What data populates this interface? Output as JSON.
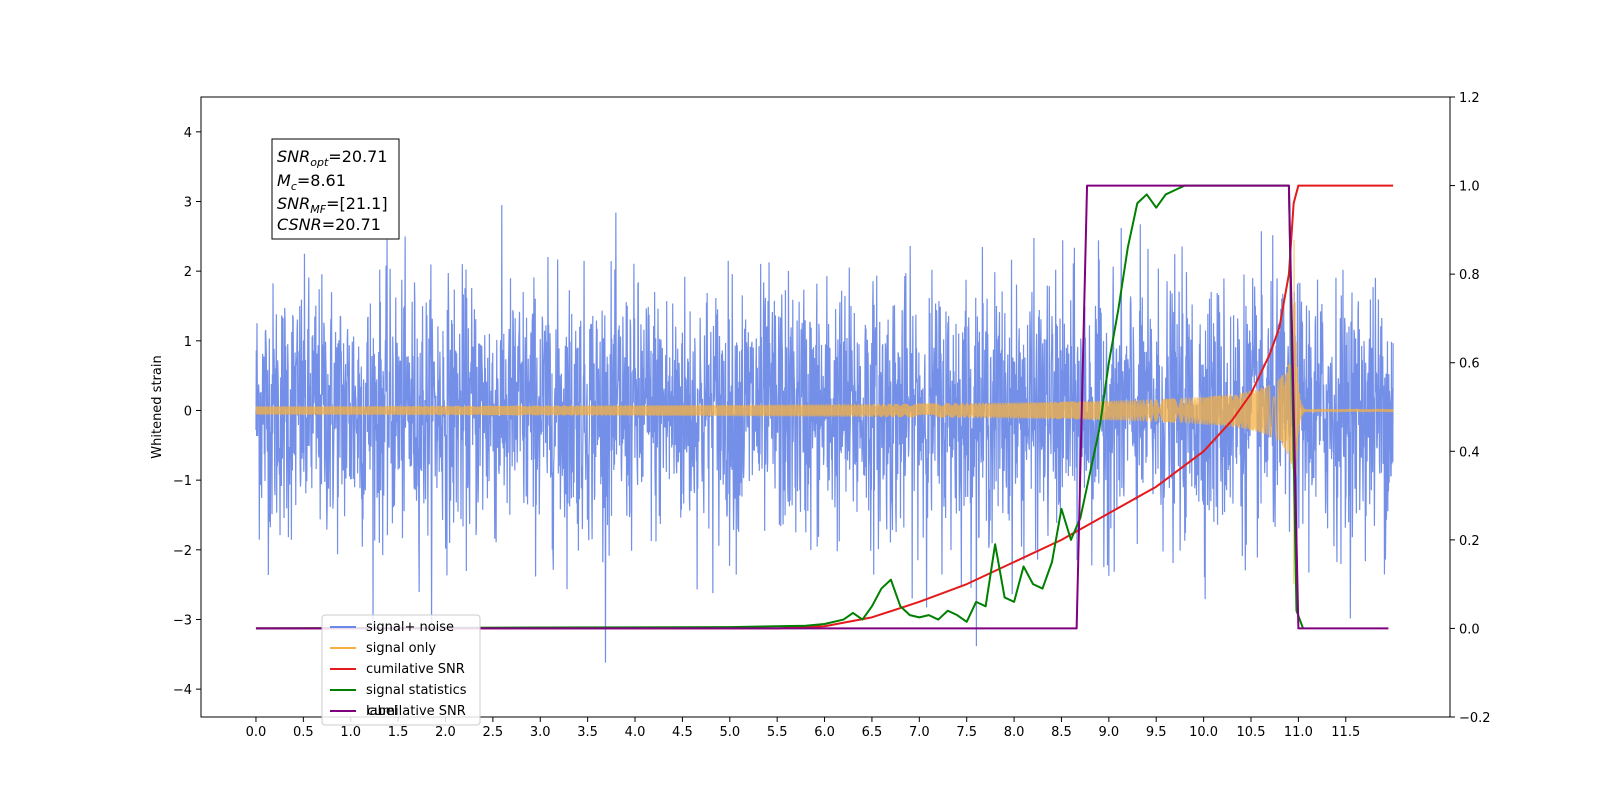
{
  "chart_data": {
    "type": "line",
    "ylabel_left": "Whitened strain",
    "ylabel_right": "",
    "xlim": [
      -0.58,
      12.6
    ],
    "ylim_left": [
      -4.4,
      4.5
    ],
    "ylim_right": [
      -0.2,
      1.2
    ],
    "x_ticks": [
      0.0,
      0.5,
      1.0,
      1.5,
      2.0,
      2.5,
      3.0,
      3.5,
      4.0,
      4.5,
      5.0,
      5.5,
      6.0,
      6.5,
      7.0,
      7.5,
      8.0,
      8.5,
      9.0,
      9.5,
      10.0,
      10.5,
      11.0,
      11.5
    ],
    "x_tick_labels": [
      "0.0",
      "0.5",
      "1.0",
      "1.5",
      "2.0",
      "2.5",
      "3.0",
      "3.5",
      "4.0",
      "4.5",
      "5.0",
      "5.5",
      "6.0",
      "6.5",
      "7.0",
      "7.5",
      "8.0",
      "8.5",
      "9.0",
      "9.5",
      "10.0",
      "10.5",
      "11.0",
      "11.5"
    ],
    "y_left_ticks": [
      -4,
      -3,
      -2,
      -1,
      0,
      1,
      2,
      3,
      4
    ],
    "y_left_tick_labels": [
      "−4",
      "−3",
      "−2",
      "−1",
      "0",
      "1",
      "2",
      "3",
      "4"
    ],
    "y_right_ticks": [
      -0.2,
      0.0,
      0.2,
      0.4,
      0.6,
      0.8,
      1.0,
      1.2
    ],
    "y_right_tick_labels": [
      "−0.2",
      "0.0",
      "0.2",
      "0.4",
      "0.6",
      "0.8",
      "1.0",
      "1.2"
    ],
    "grid": false,
    "legend_position": "lower-left",
    "series": [
      {
        "name": "signal+ noise",
        "axis": "left",
        "color": "#6b89e6",
        "kind": "noise",
        "x_range": [
          0.0,
          12.0
        ],
        "noise_std": 0.9,
        "noise_peak_max": 4.12,
        "noise_peak_min": -4.0
      },
      {
        "name": "signal only",
        "axis": "left",
        "color": "#f5b041",
        "kind": "chirp",
        "x_range": [
          0.0,
          12.0
        ],
        "merger_time": 10.95,
        "peak_amplitude": 3.0
      },
      {
        "name": "cumilative SNR",
        "axis": "right",
        "color": "#e41a1c",
        "x": [
          0.0,
          5.5,
          6.0,
          6.5,
          7.0,
          7.5,
          8.0,
          8.5,
          9.0,
          9.5,
          10.0,
          10.3,
          10.5,
          10.7,
          10.8,
          10.9,
          10.95,
          11.0,
          12.0
        ],
        "values": [
          0.0,
          0.0,
          0.005,
          0.025,
          0.06,
          0.1,
          0.15,
          0.2,
          0.26,
          0.32,
          0.4,
          0.47,
          0.53,
          0.62,
          0.68,
          0.8,
          0.96,
          1.0,
          1.0
        ]
      },
      {
        "name": "signal statistics",
        "axis": "right",
        "color": "#008000",
        "x": [
          0.0,
          3.0,
          5.0,
          5.8,
          6.0,
          6.2,
          6.3,
          6.4,
          6.5,
          6.6,
          6.7,
          6.8,
          6.9,
          7.0,
          7.1,
          7.2,
          7.3,
          7.4,
          7.5,
          7.6,
          7.7,
          7.8,
          7.9,
          8.0,
          8.1,
          8.2,
          8.3,
          8.4,
          8.5,
          8.6,
          8.7,
          8.8,
          8.9,
          9.0,
          9.1,
          9.2,
          9.3,
          9.4,
          9.5,
          9.6,
          9.7,
          9.8,
          10.0,
          10.5,
          10.9,
          10.98,
          11.05
        ],
        "values": [
          0.0,
          0.002,
          0.003,
          0.006,
          0.01,
          0.02,
          0.035,
          0.02,
          0.05,
          0.09,
          0.11,
          0.05,
          0.03,
          0.025,
          0.03,
          0.02,
          0.04,
          0.03,
          0.015,
          0.06,
          0.05,
          0.19,
          0.07,
          0.06,
          0.14,
          0.1,
          0.09,
          0.15,
          0.27,
          0.2,
          0.25,
          0.35,
          0.45,
          0.6,
          0.72,
          0.86,
          0.96,
          0.98,
          0.95,
          0.98,
          0.99,
          1.0,
          1.0,
          1.0,
          1.0,
          0.04,
          0.0
        ]
      },
      {
        "name": "label",
        "axis": "right",
        "color": "#800080",
        "x": [
          0.0,
          8.66,
          8.77,
          10.9,
          11.0,
          11.95
        ],
        "values": [
          0.0,
          0.0,
          1.0,
          1.0,
          0.0,
          0.0
        ]
      }
    ],
    "legend_ghost_text": "cumilative SNR",
    "annotation_box": [
      {
        "main": "SNR",
        "sub": "opt",
        "value": "=20.71"
      },
      {
        "main": "M",
        "sub": "c",
        "value": "=8.61"
      },
      {
        "main": "SNR",
        "sub": "MF",
        "value": "=[21.1]"
      },
      {
        "main": "CSNR",
        "sub": "",
        "value": "=20.71"
      }
    ]
  }
}
